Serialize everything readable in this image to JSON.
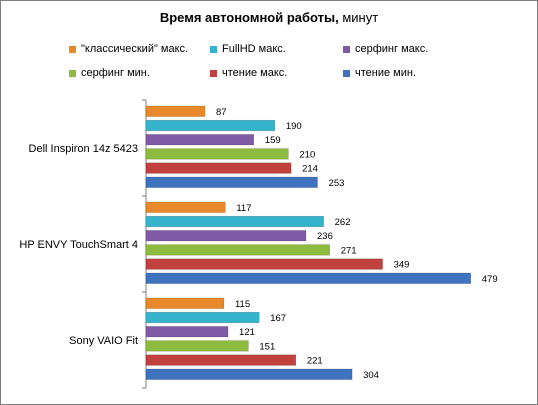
{
  "chart_data": {
    "type": "bar",
    "orientation": "horizontal",
    "title_bold": "Время автономной работы,",
    "title_rest": " минут",
    "categories": [
      "Dell Inspiron 14z 5423",
      "HP ENVY TouchSmart 4",
      "Sony VAIO Fit"
    ],
    "series": [
      {
        "name": "\"классический\" макс.",
        "color": "#e7892b",
        "values": [
          87,
          117,
          115
        ]
      },
      {
        "name": "FullHD макс.",
        "color": "#35b3cc",
        "values": [
          190,
          262,
          167
        ]
      },
      {
        "name": "серфинг макс.",
        "color": "#7f5aa5",
        "values": [
          159,
          236,
          121
        ]
      },
      {
        "name": "серфинг мин.",
        "color": "#8dbb3d",
        "values": [
          210,
          271,
          151
        ]
      },
      {
        "name": "чтение макс.",
        "color": "#c0413d",
        "values": [
          214,
          349,
          221
        ]
      },
      {
        "name": "чтение мин.",
        "color": "#3f72bf",
        "values": [
          253,
          479,
          304
        ]
      }
    ],
    "xlim": [
      0,
      500
    ],
    "grid": false,
    "legend_position": "top"
  }
}
